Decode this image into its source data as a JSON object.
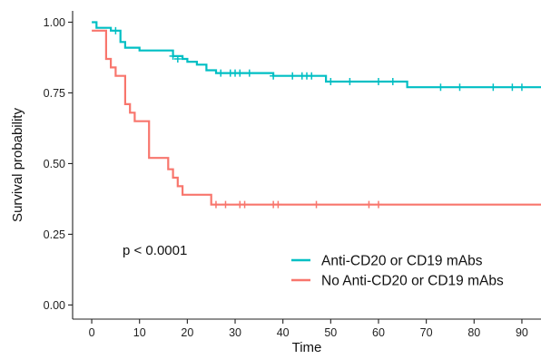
{
  "chart_data": {
    "type": "line",
    "subtype": "kaplan-meier step survival curve",
    "xlabel": "Time",
    "ylabel": "Survival probability",
    "xlim": [
      -4,
      94
    ],
    "ylim": [
      -0.05,
      1.04
    ],
    "x_ticks": [
      0,
      10,
      20,
      30,
      40,
      50,
      60,
      70,
      80,
      90
    ],
    "y_ticks": [
      0.0,
      0.25,
      0.5,
      0.75,
      1.0
    ],
    "y_tick_labels": [
      "0.00",
      "0.25",
      "0.50",
      "0.75",
      "1.00"
    ],
    "grid": false,
    "annotation": "p < 0.0001",
    "legend_position": "bottom-right",
    "series": [
      {
        "name": "Anti-CD20 or CD19 mAbs",
        "color": "#00BFC4",
        "steps": [
          [
            0,
            1.0
          ],
          [
            1,
            0.98
          ],
          [
            4,
            0.97
          ],
          [
            6,
            0.93
          ],
          [
            7,
            0.91
          ],
          [
            10,
            0.9
          ],
          [
            17,
            0.88
          ],
          [
            19,
            0.87
          ],
          [
            20,
            0.86
          ],
          [
            22,
            0.85
          ],
          [
            24,
            0.83
          ],
          [
            26,
            0.82
          ],
          [
            38,
            0.81
          ],
          [
            49,
            0.79
          ],
          [
            66,
            0.77
          ],
          [
            94,
            0.77
          ]
        ],
        "censored": [
          [
            5,
            0.97
          ],
          [
            17,
            0.88
          ],
          [
            18,
            0.87
          ],
          [
            27,
            0.82
          ],
          [
            29,
            0.82
          ],
          [
            30,
            0.82
          ],
          [
            31,
            0.82
          ],
          [
            33,
            0.82
          ],
          [
            38,
            0.81
          ],
          [
            42,
            0.81
          ],
          [
            44,
            0.81
          ],
          [
            45,
            0.81
          ],
          [
            46,
            0.81
          ],
          [
            50,
            0.79
          ],
          [
            54,
            0.79
          ],
          [
            60,
            0.79
          ],
          [
            63,
            0.79
          ],
          [
            73,
            0.77
          ],
          [
            77,
            0.77
          ],
          [
            84,
            0.77
          ],
          [
            88,
            0.77
          ],
          [
            90,
            0.77
          ]
        ]
      },
      {
        "name": "No Anti-CD20 or CD19 mAbs",
        "color": "#F8766D",
        "steps": [
          [
            0,
            0.97
          ],
          [
            3,
            0.87
          ],
          [
            4,
            0.84
          ],
          [
            5,
            0.81
          ],
          [
            7,
            0.71
          ],
          [
            8,
            0.68
          ],
          [
            9,
            0.65
          ],
          [
            12,
            0.52
          ],
          [
            16,
            0.48
          ],
          [
            17,
            0.45
          ],
          [
            18,
            0.42
          ],
          [
            19,
            0.39
          ],
          [
            25,
            0.355
          ],
          [
            94,
            0.355
          ]
        ],
        "censored": [
          [
            26,
            0.355
          ],
          [
            28,
            0.355
          ],
          [
            31,
            0.355
          ],
          [
            32,
            0.355
          ],
          [
            38,
            0.355
          ],
          [
            39,
            0.355
          ],
          [
            47,
            0.355
          ],
          [
            58,
            0.355
          ],
          [
            60,
            0.355
          ]
        ]
      }
    ]
  }
}
